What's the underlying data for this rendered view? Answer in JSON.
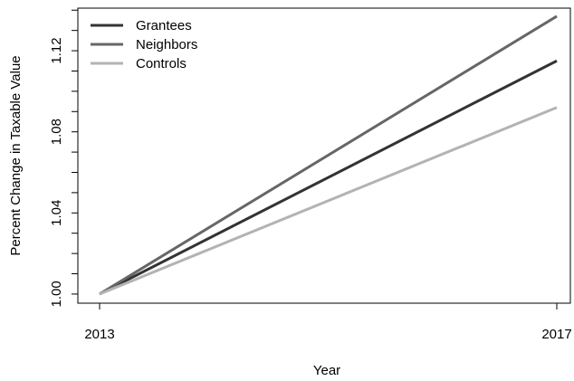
{
  "chart_data": {
    "type": "line",
    "title": "",
    "xlabel": "Year",
    "ylabel": "Percent Change in Taxable Value",
    "x": [
      2013,
      2017
    ],
    "x_ticks": [
      "2013",
      "2017"
    ],
    "y_ticks": [
      "1.00",
      "1.04",
      "1.08",
      "1.12"
    ],
    "ylim": [
      0.9955,
      1.141
    ],
    "grid": false,
    "legend_position": "top-left",
    "series": [
      {
        "name": "Grantees",
        "values": [
          1.0,
          1.115
        ],
        "color": "#333333"
      },
      {
        "name": "Neighbors",
        "values": [
          1.0,
          1.137
        ],
        "color": "#666666"
      },
      {
        "name": "Controls",
        "values": [
          1.0,
          1.092
        ],
        "color": "#b3b3b3"
      }
    ]
  }
}
